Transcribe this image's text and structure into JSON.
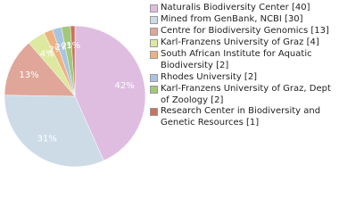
{
  "chart_data": {
    "type": "pie",
    "categories": [
      "Naturalis Biodiversity Center [40]",
      "Mined from GenBank, NCBI [30]",
      "Centre for Biodiversity Genomics [13]",
      "Karl-Franzens University of Graz [4]",
      "South African Institute for Aquatic Biodiversity [2]",
      "Rhodes University [2]",
      "Karl-Franzens University of Graz, Dept of Zoology [2]",
      "Research Center in Biodiversity and Genetic Resources [1]"
    ],
    "values": [
      42,
      31,
      13,
      4,
      2,
      2,
      2,
      1
    ],
    "value_labels": [
      "42%",
      "31%",
      "13%",
      "4%",
      "2%",
      "2%",
      "2%",
      "1%"
    ],
    "colors": [
      "#dfbde0",
      "#cddbe6",
      "#e0a699",
      "#dde8a1",
      "#eeb280",
      "#a9c4e0",
      "#a2c87a",
      "#c9725e"
    ]
  }
}
